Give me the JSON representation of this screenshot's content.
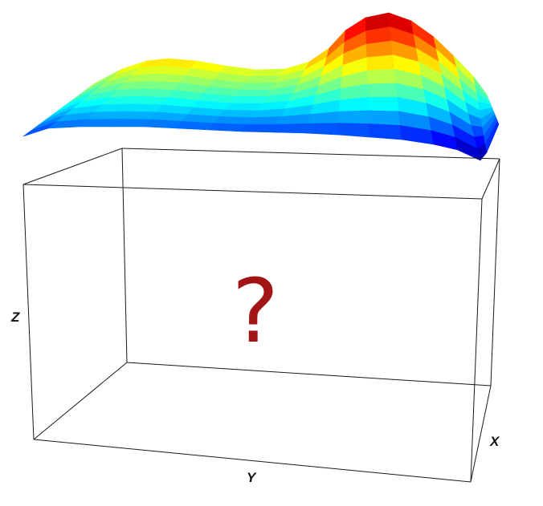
{
  "axes": {
    "x_label": "X",
    "y_label": "Y",
    "z_label": "Z"
  },
  "center_symbol": "?",
  "colors": {
    "symbol": "#a31515",
    "box_edges": "#1a1a1a",
    "surface_colormap": "jet"
  }
}
